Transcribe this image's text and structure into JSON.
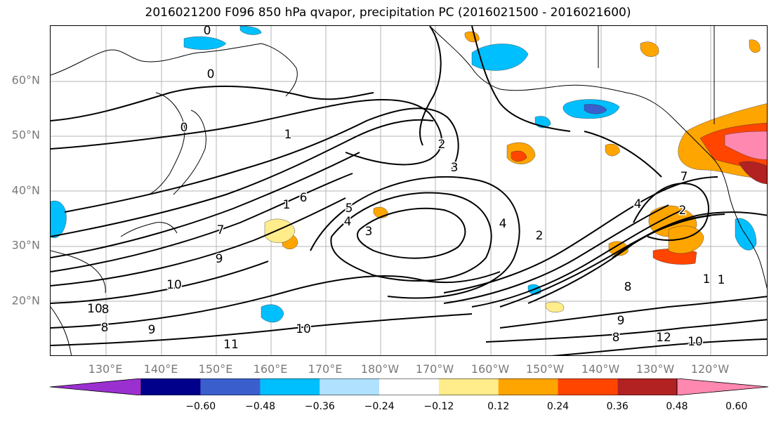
{
  "title": "2016021200 F096 850 hPa qvapor, precipitation PC (2016021500 - 2016021600)",
  "lat_labels": [
    "60°N",
    "50°N",
    "40°N",
    "30°N",
    "20°N"
  ],
  "lon_labels": [
    "130°E",
    "140°E",
    "150°E",
    "160°E",
    "170°E",
    "180°W",
    "170°W",
    "160°W",
    "150°W",
    "140°W",
    "130°W",
    "120°W"
  ],
  "colorbar": {
    "colors": [
      "#9b30d0",
      "#00008b",
      "#3a5fcd",
      "#00bfff",
      "#b0e2ff",
      "#ffffff",
      "#ffec8b",
      "#ffa500",
      "#ff4500",
      "#b22222",
      "#ff88b0"
    ],
    "tick_labels": [
      "−0.60",
      "−0.48",
      "−0.36",
      "−0.24",
      "−0.12",
      "0.12",
      "0.24",
      "0.36",
      "0.48",
      "0.60"
    ]
  },
  "contour_labels": [
    "0",
    "0",
    "0",
    "1",
    "1",
    "2",
    "3",
    "4",
    "3",
    "4",
    "5",
    "6",
    "7",
    "9",
    "10",
    "10",
    "10",
    "11",
    "8",
    "8",
    "9",
    "1",
    "2",
    "4",
    "7",
    "2",
    "1",
    "8",
    "9",
    "8",
    "12",
    "10"
  ]
}
